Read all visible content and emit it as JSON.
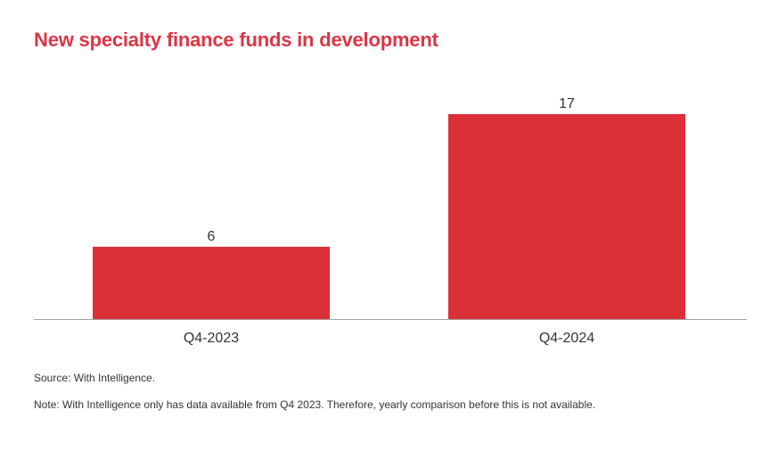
{
  "title": "New specialty finance funds in development",
  "source": "Source: With Intelligence.",
  "note": "Note: With Intelligence only has data available from Q4 2023. Therefore, yearly comparison before this is not available.",
  "colors": {
    "title": "#dc3545",
    "bar": "#dc3039",
    "axis": "#a0a0a0",
    "text": "#333333"
  },
  "chart_data": {
    "type": "bar",
    "title": "New specialty finance funds in development",
    "categories": [
      "Q4-2023",
      "Q4-2024"
    ],
    "values": [
      6,
      17
    ],
    "data_labels": [
      "6",
      "17"
    ],
    "xlabel": "",
    "ylabel": "",
    "ylim": [
      0,
      17
    ],
    "grid": false,
    "legend": "none"
  }
}
